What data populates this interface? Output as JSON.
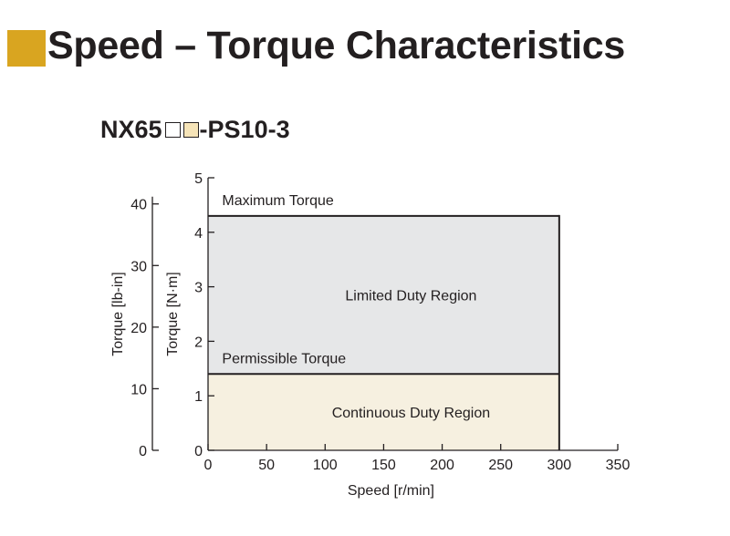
{
  "colors": {
    "accent": "#d9a520",
    "continuous_fill": "#f6f0e0",
    "limited_fill": "#e6e7e8",
    "ink": "#231f20"
  },
  "header": {
    "title": "Speed – Torque Characteristics"
  },
  "model": {
    "prefix": "NX65",
    "suffix": "-PS10-3",
    "box_colors": [
      "#ffffff",
      "#f6e4b8"
    ]
  },
  "chart_data": {
    "type": "area",
    "xlabel": "Speed [r/min]",
    "ylabel": "Torque [N·m]",
    "ylabel_secondary": "Torque [lb-in]",
    "xlim": [
      0,
      350
    ],
    "ylim": [
      0,
      5
    ],
    "ylim_secondary": [
      0,
      44.25
    ],
    "x_ticks": [
      0,
      50,
      100,
      150,
      200,
      250,
      300,
      350
    ],
    "y_ticks": [
      0,
      1,
      2,
      3,
      4,
      5
    ],
    "y_ticks_secondary": [
      0,
      10,
      20,
      30,
      40
    ],
    "grid": false,
    "series": [
      {
        "name": "Maximum Torque",
        "x": [
          0,
          300
        ],
        "y": [
          4.3,
          4.3
        ]
      },
      {
        "name": "Permissible Torque",
        "x": [
          0,
          300
        ],
        "y": [
          1.4,
          1.4
        ]
      }
    ],
    "regions": [
      {
        "label": "Limited Duty Region",
        "x": [
          0,
          300
        ],
        "y": [
          1.4,
          4.3
        ]
      },
      {
        "label": "Continuous Duty Region",
        "x": [
          0,
          300
        ],
        "y": [
          0,
          1.4
        ]
      }
    ]
  }
}
